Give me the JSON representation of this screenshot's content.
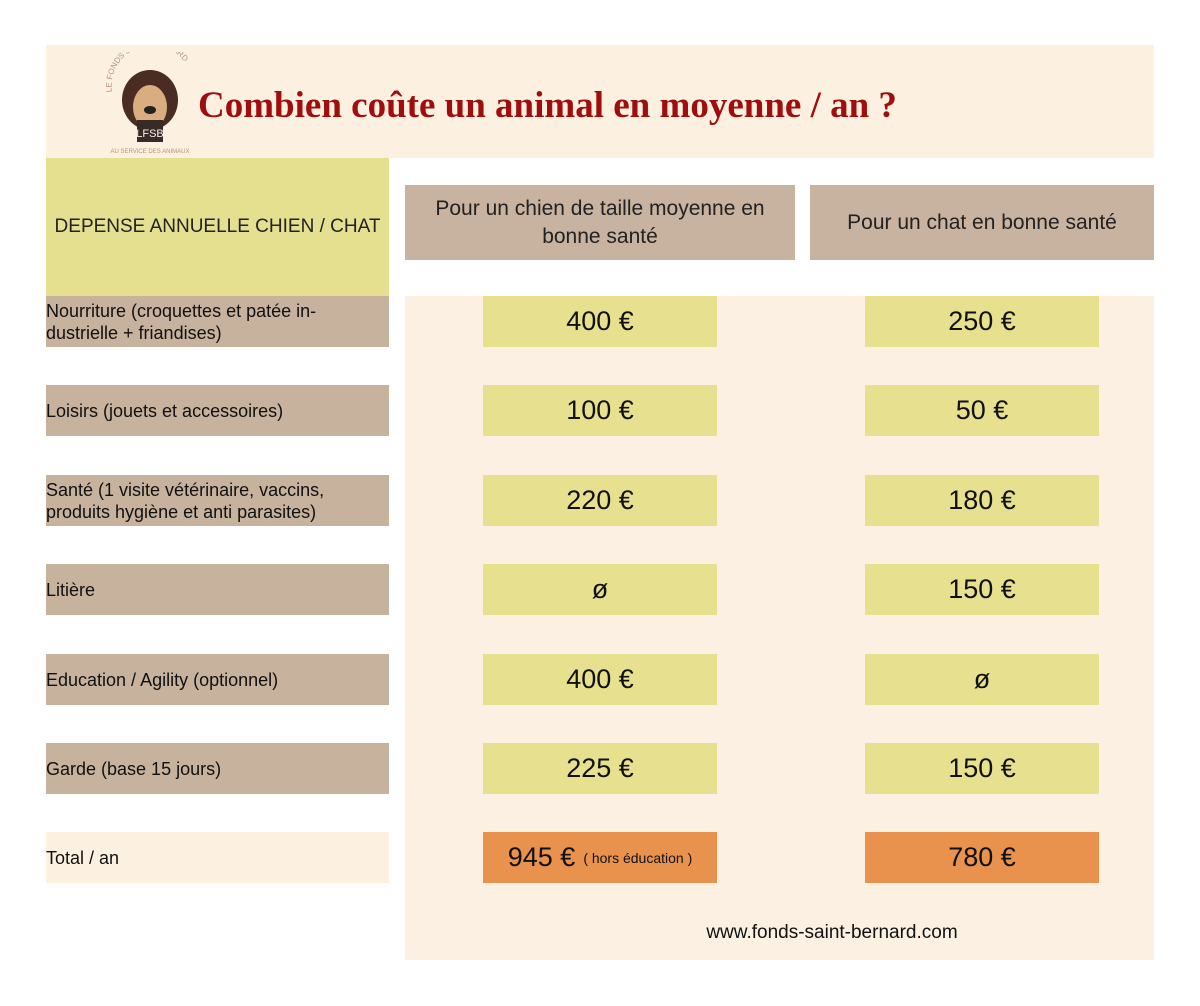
{
  "header": {
    "title": "Combien coûte un animal en moyenne / an ?",
    "logo": {
      "top_text": "LE FONDS SAINT BERNARD",
      "badge": "LFSB",
      "bottom_text": "AU SERVICE DES ANIMAUX"
    }
  },
  "table": {
    "corner": "DEPENSE ANNUELLE CHIEN / CHAT",
    "columns": [
      "Pour un chien de taille moyenne en bonne santé",
      "Pour un chat en bonne santé"
    ],
    "rows": [
      {
        "label": "Nourriture (croquettes et patée in-dustrielle + friandises)",
        "dog": "400 €",
        "cat": "250 €"
      },
      {
        "label": "Loisirs (jouets et accessoires)",
        "dog": "100 €",
        "cat": "50 €"
      },
      {
        "label": "Santé (1 visite vétérinaire, vaccins, produits hygiène et anti parasites)",
        "dog": "220 €",
        "cat": "180 €"
      },
      {
        "label": "Litière",
        "dog": "ø",
        "cat": "150 €"
      },
      {
        "label": "Education / Agility (optionnel)",
        "dog": "400 €",
        "cat": "ø"
      },
      {
        "label": "Garde (base 15 jours)",
        "dog": "225 €",
        "cat": "150 €"
      }
    ],
    "total": {
      "label": "Total / an",
      "dog": "945 €",
      "dog_note": "( hors éducation )",
      "cat": "780 €"
    }
  },
  "footer": {
    "url": "www.fonds-saint-bernard.com"
  },
  "colors": {
    "title": "#a10d0d",
    "header_bg": "#fcf0e0",
    "tan": "#c6b29d",
    "yellow": "#e7e18f",
    "orange": "#e8924e"
  }
}
